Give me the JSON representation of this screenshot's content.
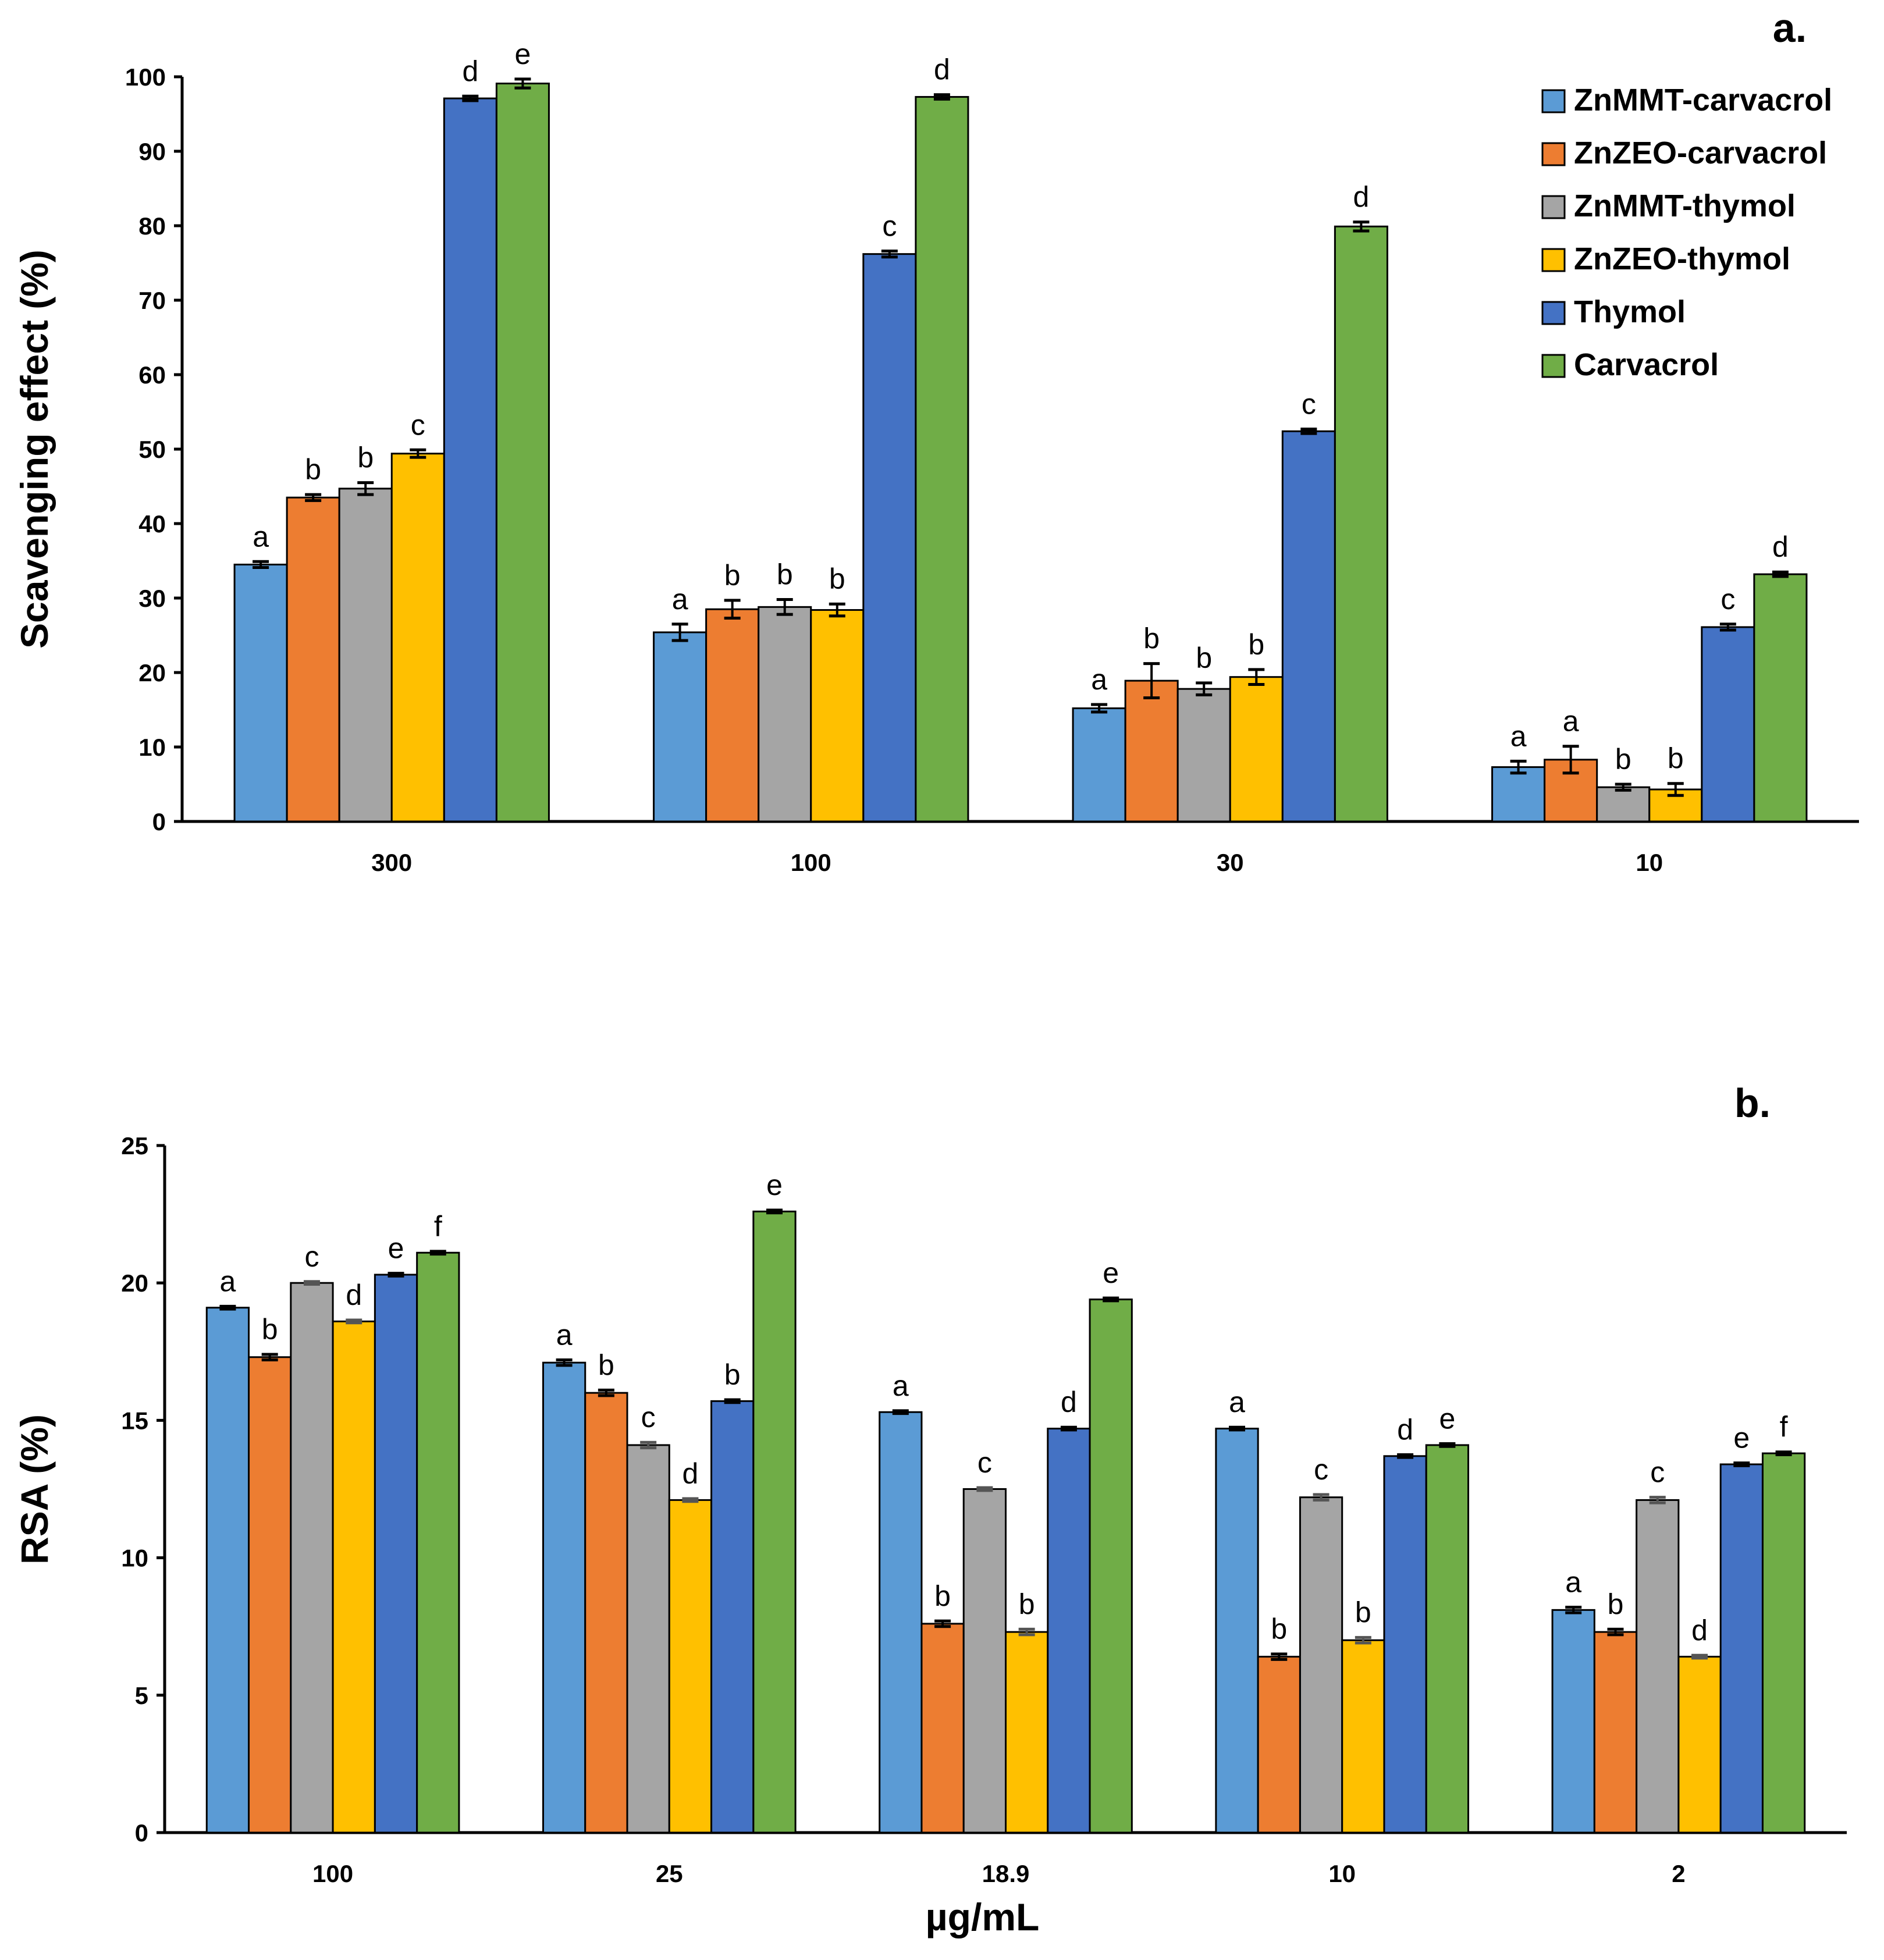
{
  "legend": [
    "ZnMMT-carvacrol",
    "ZnZEO-carvacrol",
    "ZnMMT-thymol",
    "ZnZEO-thymol",
    "Thymol",
    "Carvacrol"
  ],
  "colors": [
    "#5B9BD5",
    "#ED7D31",
    "#A5A5A5",
    "#FFC000",
    "#4472C4",
    "#70AD47"
  ],
  "chart_data": [
    {
      "type": "bar",
      "panel_label": "a.",
      "ylabel": "Scavenging effect (%)",
      "xlabel": "",
      "ylim": [
        0,
        100
      ],
      "yticks": [
        0,
        10,
        20,
        30,
        40,
        50,
        60,
        70,
        80,
        90,
        100
      ],
      "categories": [
        "300",
        "100",
        "30",
        "10"
      ],
      "legend_position": "top-right",
      "series": [
        {
          "name": "ZnMMT-carvacrol",
          "values": [
            34.5,
            25.4,
            15.2,
            7.3
          ],
          "errors": [
            0.4,
            1.1,
            0.5,
            0.8
          ],
          "letters": [
            "a",
            "a",
            "a",
            "a"
          ]
        },
        {
          "name": "ZnZEO-carvacrol",
          "values": [
            43.5,
            28.5,
            18.9,
            8.3
          ],
          "errors": [
            0.4,
            1.2,
            2.3,
            1.8
          ],
          "letters": [
            "b",
            "b",
            "b",
            "a"
          ]
        },
        {
          "name": "ZnMMT-thymol",
          "values": [
            44.7,
            28.8,
            17.8,
            4.6
          ],
          "errors": [
            0.8,
            1.0,
            0.8,
            0.4
          ],
          "letters": [
            "b",
            "b",
            "b",
            "b"
          ]
        },
        {
          "name": "ZnZEO-thymol",
          "values": [
            49.4,
            28.4,
            19.4,
            4.3
          ],
          "errors": [
            0.5,
            0.8,
            1.0,
            0.8
          ],
          "letters": [
            "c",
            "b",
            "b",
            "b"
          ]
        },
        {
          "name": "Thymol",
          "values": [
            97.1,
            76.2,
            52.4,
            26.1
          ],
          "errors": [
            0.3,
            0.4,
            0.3,
            0.4
          ],
          "letters": [
            "d",
            "c",
            "c",
            "c"
          ]
        },
        {
          "name": "Carvacrol",
          "values": [
            99.1,
            97.3,
            79.9,
            33.2
          ],
          "errors": [
            0.6,
            0.3,
            0.6,
            0.3
          ],
          "letters": [
            "e",
            "d",
            "d",
            "d"
          ]
        }
      ]
    },
    {
      "type": "bar",
      "panel_label": "b.",
      "ylabel": "RSA (%)",
      "xlabel": "µg/mL",
      "ylim": [
        0,
        25
      ],
      "yticks": [
        0,
        5,
        10,
        15,
        20,
        25
      ],
      "categories": [
        "100",
        "25",
        "18.9",
        "10",
        "2"
      ],
      "series": [
        {
          "name": "ZnMMT-carvacrol",
          "values": [
            19.1,
            17.1,
            15.3,
            14.7,
            8.1
          ],
          "errors": [
            0.05,
            0.1,
            0.05,
            0.05,
            0.1
          ],
          "letters": [
            "a",
            "a",
            "a",
            "a",
            "a"
          ]
        },
        {
          "name": "ZnZEO-carvacrol",
          "values": [
            17.3,
            16.0,
            7.6,
            6.4,
            7.3
          ],
          "errors": [
            0.1,
            0.1,
            0.1,
            0.1,
            0.1
          ],
          "letters": [
            "b",
            "b",
            "b",
            "b",
            "b"
          ]
        },
        {
          "name": "ZnMMT-thymol",
          "values": [
            20.0,
            14.1,
            12.5,
            12.2,
            12.1
          ],
          "errors": [
            0.05,
            0.1,
            0.05,
            0.1,
            0.1
          ],
          "letters": [
            "c",
            "c",
            "c",
            "c",
            "c"
          ]
        },
        {
          "name": "ZnZEO-thymol",
          "values": [
            18.6,
            12.1,
            7.3,
            7.0,
            6.4
          ],
          "errors": [
            0.05,
            0.05,
            0.1,
            0.1,
            0.05
          ],
          "letters": [
            "d",
            "d",
            "b",
            "b",
            "d"
          ]
        },
        {
          "name": "Thymol",
          "values": [
            20.3,
            15.7,
            14.7,
            13.7,
            13.4
          ],
          "errors": [
            0.05,
            0.05,
            0.05,
            0.05,
            0.05
          ],
          "letters": [
            "e",
            "b",
            "d",
            "d",
            "e"
          ]
        },
        {
          "name": "Carvacrol",
          "values": [
            21.1,
            22.6,
            19.4,
            14.1,
            13.8
          ],
          "errors": [
            0.05,
            0.05,
            0.05,
            0.05,
            0.05
          ],
          "letters": [
            "f",
            "e",
            "e",
            "e",
            "f"
          ]
        }
      ]
    }
  ]
}
